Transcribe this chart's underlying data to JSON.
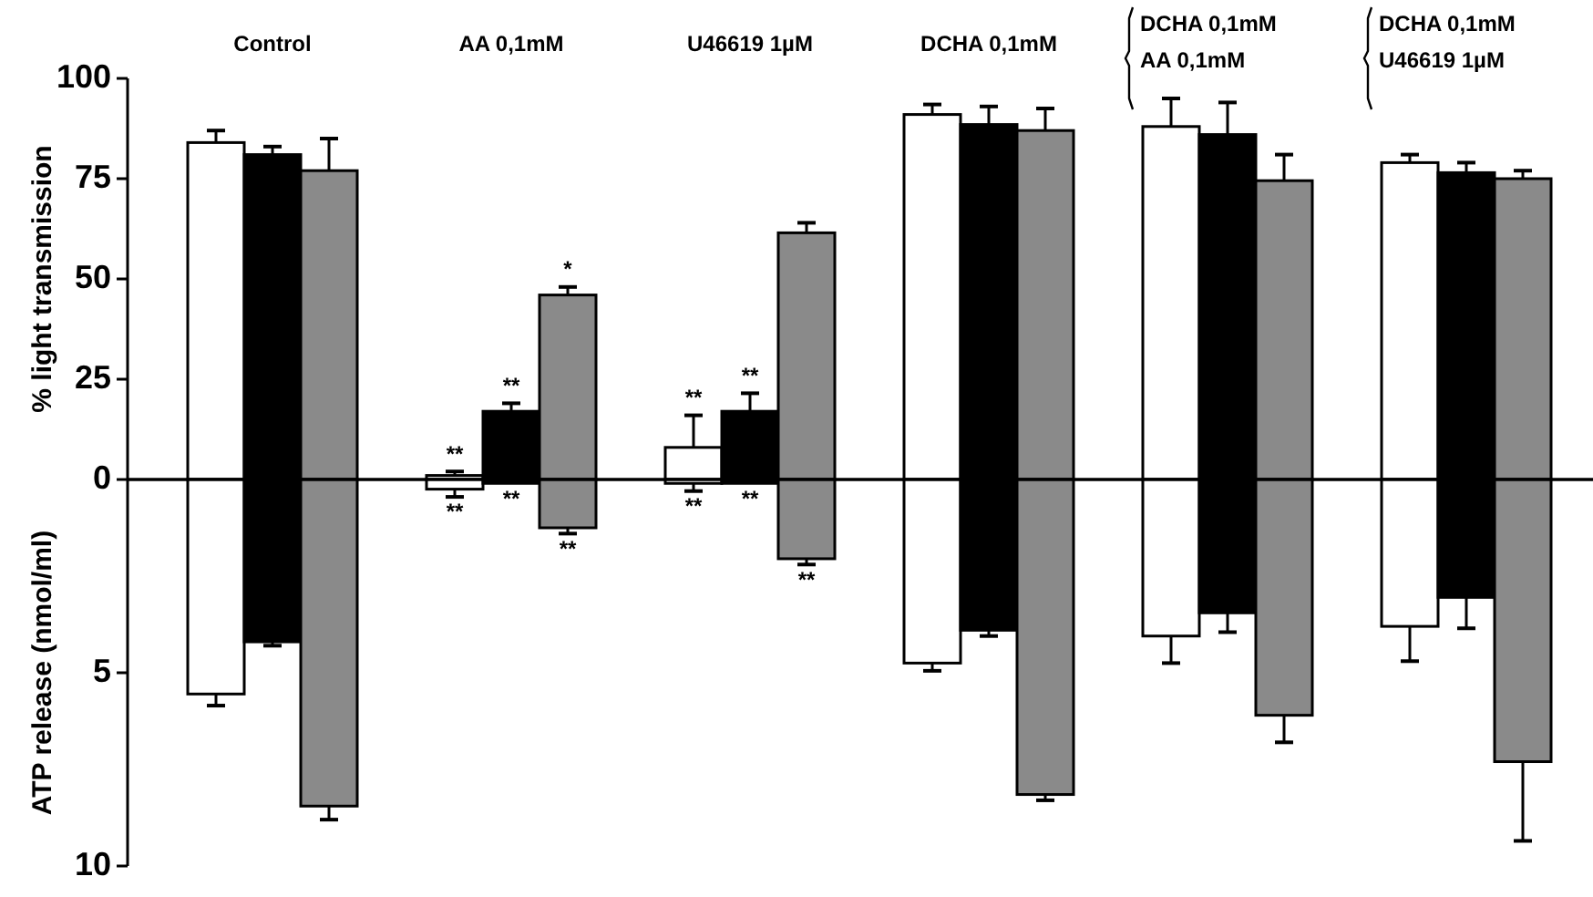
{
  "chart_data": [
    {
      "type": "bar",
      "ylabel": "% light transmission",
      "categories": [
        "Control",
        "AA 0,1mM",
        "U46619 1µM",
        "DCHA 0,1mM",
        "DCHA 0,1mM\nAA 0,1mM",
        "DCHA 0,1mM\nU46619 1µM"
      ],
      "ylim": [
        0,
        100
      ],
      "yticks": [
        0,
        25,
        50,
        75,
        100
      ],
      "series": [
        {
          "color": "#ffffff",
          "values": [
            84,
            1,
            8,
            91,
            88,
            79
          ],
          "errors": [
            [
              84,
              87
            ],
            [
              1,
              2
            ],
            [
              8,
              16
            ],
            [
              91,
              93.5
            ],
            [
              88,
              95
            ],
            [
              79,
              81
            ]
          ],
          "value_labels": [
            null,
            "**",
            "**",
            null,
            null,
            null
          ]
        },
        {
          "color": "#000000",
          "values": [
            81,
            17,
            17,
            88.5,
            86,
            76.5
          ],
          "errors": [
            [
              81,
              83
            ],
            [
              17,
              19
            ],
            [
              17,
              21.5
            ],
            [
              88.5,
              93
            ],
            [
              86,
              94
            ],
            [
              76.5,
              79
            ]
          ],
          "value_labels": [
            null,
            "**",
            "**",
            null,
            null,
            null
          ]
        },
        {
          "color": "#8a8a8a",
          "values": [
            77,
            46,
            61.5,
            87,
            74.5,
            75
          ],
          "errors": [
            [
              77,
              85
            ],
            [
              46,
              48
            ],
            [
              61.5,
              64
            ],
            [
              87,
              92.5
            ],
            [
              74.5,
              81
            ],
            [
              75,
              77
            ]
          ],
          "value_labels": [
            null,
            "*",
            null,
            null,
            null,
            null
          ]
        }
      ]
    },
    {
      "type": "bar",
      "ylabel": "ATP release (nmol/ml)",
      "categories": [
        null,
        null,
        null,
        null,
        null,
        null
      ],
      "ylim": [
        10,
        0
      ],
      "yticks": [
        5,
        10
      ],
      "series": [
        {
          "color": "#ffffff",
          "values": [
            5.55,
            0.25,
            0.1,
            4.75,
            4.05,
            3.8
          ],
          "errors": [
            [
              5.55,
              5.85
            ],
            [
              0.25,
              0.45
            ],
            [
              0.1,
              0.3
            ],
            [
              4.75,
              4.95
            ],
            [
              4.05,
              4.75
            ],
            [
              3.8,
              4.7
            ]
          ],
          "value_labels": [
            null,
            "**",
            "**",
            null,
            null,
            null
          ]
        },
        {
          "color": "#000000",
          "values": [
            4.2,
            0.1,
            0.1,
            3.9,
            3.45,
            3.05
          ],
          "errors": [
            [
              4.2,
              4.3
            ],
            null,
            null,
            [
              3.9,
              4.05
            ],
            [
              3.45,
              3.95
            ],
            [
              3.05,
              3.85
            ]
          ],
          "value_labels": [
            null,
            "**",
            "**",
            null,
            null,
            null
          ]
        },
        {
          "color": "#8a8a8a",
          "values": [
            8.45,
            1.25,
            2.05,
            8.15,
            6.1,
            7.3
          ],
          "errors": [
            [
              8.45,
              8.8
            ],
            [
              1.25,
              1.4
            ],
            [
              2.05,
              2.2
            ],
            [
              8.15,
              8.3
            ],
            [
              6.1,
              6.8
            ],
            [
              7.3,
              9.35
            ]
          ],
          "value_labels": [
            null,
            "**",
            "**",
            null,
            null,
            null
          ]
        }
      ]
    }
  ]
}
